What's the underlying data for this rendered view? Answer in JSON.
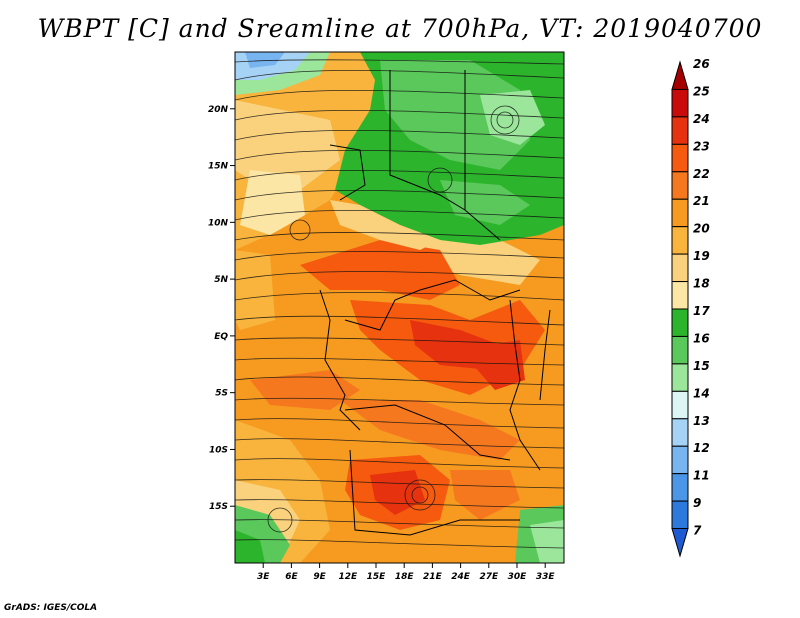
{
  "title": "WBPT [C] and Sreamline at 700hPa, VT: 2019040700",
  "credit": "GrADS: IGES/COLA",
  "map": {
    "lat_labels": [
      "20N",
      "15N",
      "10N",
      "5N",
      "EQ",
      "5S",
      "10S",
      "15S"
    ],
    "lat_values": [
      20,
      15,
      10,
      5,
      0,
      -5,
      -10,
      -15
    ],
    "lon_labels": [
      "3E",
      "6E",
      "9E",
      "12E",
      "15E",
      "18E",
      "21E",
      "24E",
      "27E",
      "30E",
      "33E"
    ],
    "lon_values": [
      3,
      6,
      9,
      12,
      15,
      18,
      21,
      24,
      27,
      30,
      33
    ],
    "lon_range": [
      0,
      35
    ],
    "lat_range": [
      -20,
      25
    ]
  },
  "colorbar": {
    "levels": [
      "26",
      "25",
      "24",
      "23",
      "22",
      "21",
      "20",
      "19",
      "18",
      "17",
      "16",
      "15",
      "14",
      "13",
      "12",
      "11",
      "9",
      "7"
    ],
    "colors": [
      "#a50000",
      "#c80a0a",
      "#e6320f",
      "#f55a0f",
      "#f5781e",
      "#f79b20",
      "#f8b43c",
      "#fad27d",
      "#fbe6a5",
      "#2db42d",
      "#5ac85a",
      "#9be69b",
      "#dcf5f5",
      "#a5d2f5",
      "#78b4f0",
      "#4b96e6",
      "#2d78dc",
      "#1e5ad2"
    ]
  }
}
